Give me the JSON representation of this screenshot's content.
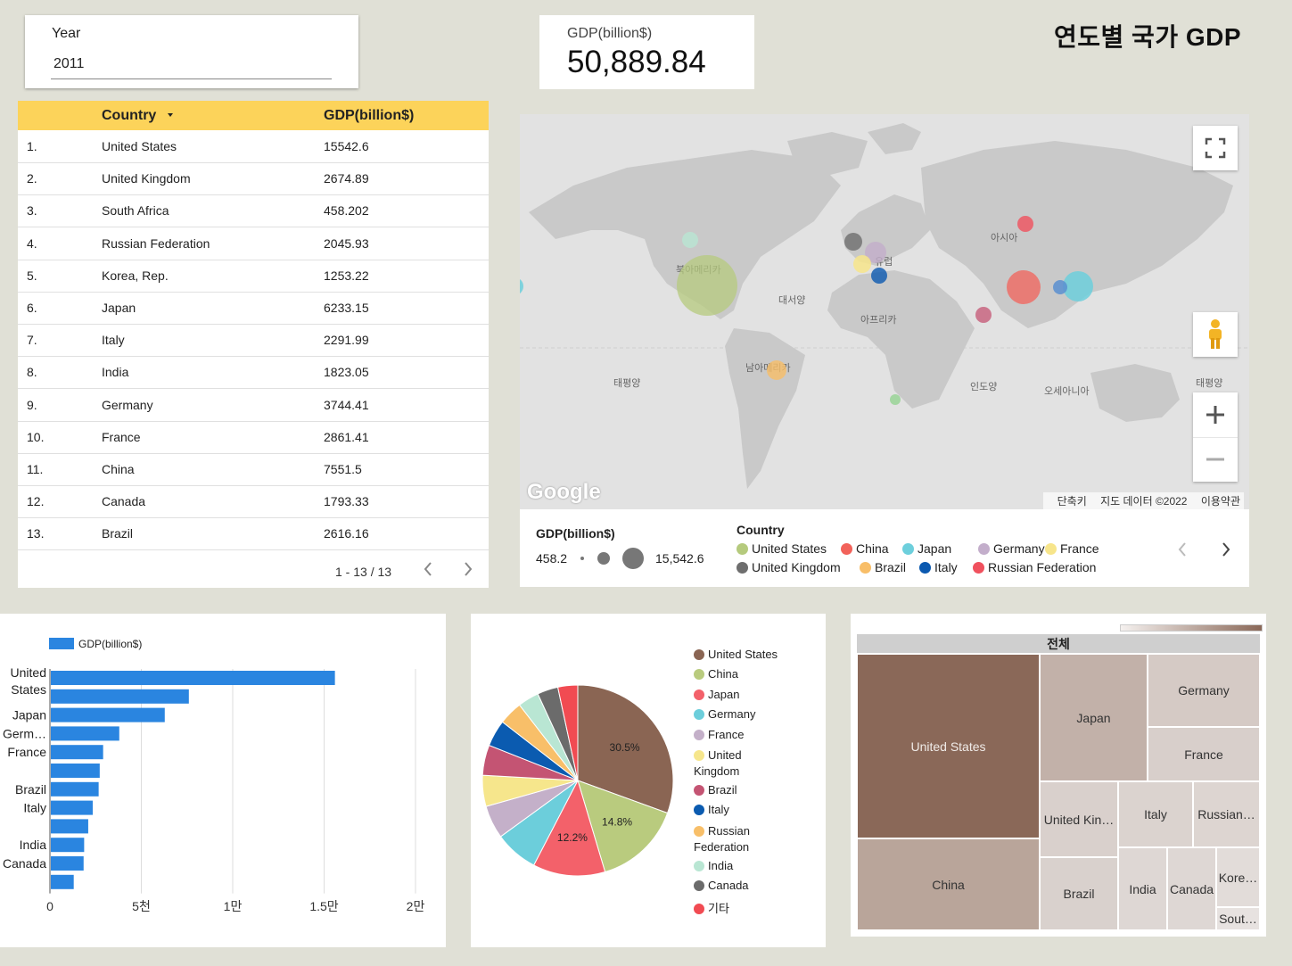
{
  "title": "연도별 국가 GDP",
  "year_filter": {
    "label": "Year",
    "value": "2011"
  },
  "scorecard": {
    "label": "GDP(billion$)",
    "value": "50,889.84"
  },
  "table": {
    "headers": {
      "country": "Country",
      "gdp": "GDP(billion$)"
    },
    "rows": [
      {
        "idx": "1.",
        "country": "United States",
        "gdp": "15542.6"
      },
      {
        "idx": "2.",
        "country": "United Kingdom",
        "gdp": "2674.89"
      },
      {
        "idx": "3.",
        "country": "South Africa",
        "gdp": "458.202"
      },
      {
        "idx": "4.",
        "country": "Russian Federation",
        "gdp": "2045.93"
      },
      {
        "idx": "5.",
        "country": "Korea, Rep.",
        "gdp": "1253.22"
      },
      {
        "idx": "6.",
        "country": "Japan",
        "gdp": "6233.15"
      },
      {
        "idx": "7.",
        "country": "Italy",
        "gdp": "2291.99"
      },
      {
        "idx": "8.",
        "country": "India",
        "gdp": "1823.05"
      },
      {
        "idx": "9.",
        "country": "Germany",
        "gdp": "3744.41"
      },
      {
        "idx": "10.",
        "country": "France",
        "gdp": "2861.41"
      },
      {
        "idx": "11.",
        "country": "China",
        "gdp": "7551.5"
      },
      {
        "idx": "12.",
        "country": "Canada",
        "gdp": "1793.33"
      },
      {
        "idx": "13.",
        "country": "Brazil",
        "gdp": "2616.16"
      }
    ],
    "pager": "1 - 13 / 13",
    "sort_icon": "caret-down-icon"
  },
  "map": {
    "labels": {
      "north_america": "북아메리카",
      "south_america": "남아메리카",
      "europe": "유럽",
      "africa": "아프리카",
      "asia": "아시아",
      "oceania": "오세아니아",
      "atlantic": "대서양",
      "pacific_left": "태평양",
      "pacific_right": "태평양",
      "indian": "인도양"
    },
    "google": "Google",
    "footer": {
      "shortcuts": "단축키",
      "data": "지도 데이터 ©2022",
      "terms": "이용약관"
    },
    "size_legend": {
      "title": "GDP(billion$)",
      "min": "458.2",
      "max": "15,542.6"
    },
    "country_legend_title": "Country",
    "country_legend": [
      {
        "name": "United States",
        "color": "#b5ca7d"
      },
      {
        "name": "China",
        "color": "#f2625a"
      },
      {
        "name": "Japan",
        "color": "#6dcfdc"
      },
      {
        "name": "Germany",
        "color": "#c3aecb"
      },
      {
        "name": "France",
        "color": "#f7e58b"
      },
      {
        "name": "United Kingdom",
        "color": "#6e6e6e"
      },
      {
        "name": "Brazil",
        "color": "#f8be68"
      },
      {
        "name": "Italy",
        "color": "#0b59b0"
      },
      {
        "name": "Russian Federation",
        "color": "#f0515e"
      }
    ]
  },
  "chart_data": [
    {
      "type": "bar",
      "orientation": "horizontal",
      "legend": "GDP(billion$)",
      "color": "#2a85e0",
      "categories": [
        "United States",
        "China",
        "Japan",
        "Germany",
        "France",
        "United Kingdom",
        "Brazil",
        "Italy",
        "Russian Federation",
        "India",
        "Canada",
        "Korea, Rep."
      ],
      "category_labels": [
        "United States",
        "",
        "Japan",
        "Germ…",
        "France",
        "",
        "Brazil",
        "Italy",
        "",
        "India",
        "Canada",
        ""
      ],
      "values": [
        15542.6,
        7551.5,
        6233.15,
        3744.41,
        2861.41,
        2674.89,
        2616.16,
        2291.99,
        2045.93,
        1823.05,
        1793.33,
        1253.22
      ],
      "xlim": [
        0,
        20000
      ],
      "xticks": [
        0,
        5000,
        10000,
        15000,
        20000
      ],
      "xtick_labels": [
        "0",
        "5천",
        "1만",
        "1.5만",
        "2만"
      ],
      "grid": true
    },
    {
      "type": "pie",
      "slices": [
        {
          "name": "United States",
          "value": 15542.6,
          "color": "#8a6553",
          "label": "30.5%"
        },
        {
          "name": "China",
          "value": 7551.5,
          "color": "#b9cb7e",
          "label": "14.8%"
        },
        {
          "name": "Japan",
          "value": 6233.15,
          "color": "#f3616a",
          "label": "12.2%"
        },
        {
          "name": "Germany",
          "value": 3744.41,
          "color": "#6ccedb",
          "label": ""
        },
        {
          "name": "France",
          "value": 2861.41,
          "color": "#c4b0c9",
          "label": ""
        },
        {
          "name": "United Kingdom",
          "value": 2674.89,
          "color": "#f6e68c",
          "label": ""
        },
        {
          "name": "Brazil",
          "value": 2616.16,
          "color": "#c45473",
          "label": ""
        },
        {
          "name": "Italy",
          "value": 2291.99,
          "color": "#0b5bb0",
          "label": ""
        },
        {
          "name": "Russian Federation",
          "value": 2045.93,
          "color": "#f8bf69",
          "label": ""
        },
        {
          "name": "India",
          "value": 1823.05,
          "color": "#b9e6d3",
          "label": ""
        },
        {
          "name": "Canada",
          "value": 1793.33,
          "color": "#6b6b6b",
          "label": ""
        },
        {
          "name": "기타",
          "value": 1711.42,
          "color": "#f14b52",
          "label": ""
        }
      ],
      "legend": [
        {
          "name": "United States",
          "color": "#8a6553"
        },
        {
          "name": "China",
          "color": "#b9cb7e"
        },
        {
          "name": "Japan",
          "color": "#f3616a"
        },
        {
          "name": "Germany",
          "color": "#6ccedb"
        },
        {
          "name": "France",
          "color": "#c4b0c9"
        },
        {
          "name": "United Kingdom",
          "color": "#f6e68c"
        },
        {
          "name": "Brazil",
          "color": "#c45473"
        },
        {
          "name": "Italy",
          "color": "#0b5bb0"
        },
        {
          "name": "Russian Federation",
          "color": "#f8bf69"
        },
        {
          "name": "India",
          "color": "#b9e6d3"
        },
        {
          "name": "Canada",
          "color": "#6b6b6b"
        },
        {
          "name": "기타",
          "color": "#f14b52"
        }
      ]
    },
    {
      "type": "treemap",
      "root_label": "전체",
      "cells": [
        {
          "name": "United States",
          "label": "United States",
          "value": 15542.6,
          "color": "#8a6858"
        },
        {
          "name": "China",
          "label": "China",
          "value": 7551.5,
          "color": "#b9a59a"
        },
        {
          "name": "Japan",
          "label": "Japan",
          "value": 6233.15,
          "color": "#c2b1a9"
        },
        {
          "name": "Germany",
          "label": "Germany",
          "value": 3744.41,
          "color": "#d5cac5"
        },
        {
          "name": "France",
          "label": "France",
          "value": 2861.41,
          "color": "#d8cfcb"
        },
        {
          "name": "United Kingdom",
          "label": "United Kin…",
          "value": 2674.89,
          "color": "#d9d0cc"
        },
        {
          "name": "Italy",
          "label": "Italy",
          "value": 2291.99,
          "color": "#dbd3cf"
        },
        {
          "name": "Russian Federation",
          "label": "Russian…",
          "value": 2045.93,
          "color": "#ddd5d1"
        },
        {
          "name": "Brazil",
          "label": "Brazil",
          "value": 2616.16,
          "color": "#d9d1cd"
        },
        {
          "name": "India",
          "label": "India",
          "value": 1823.05,
          "color": "#ded7d4"
        },
        {
          "name": "Canada",
          "label": "Canada",
          "value": 1793.33,
          "color": "#ded7d4"
        },
        {
          "name": "Korea, Rep.",
          "label": "Kore…",
          "value": 1253.22,
          "color": "#e2dcd9"
        },
        {
          "name": "South Africa",
          "label": "Sout…",
          "value": 458.202,
          "color": "#e7e2e0"
        }
      ]
    }
  ]
}
